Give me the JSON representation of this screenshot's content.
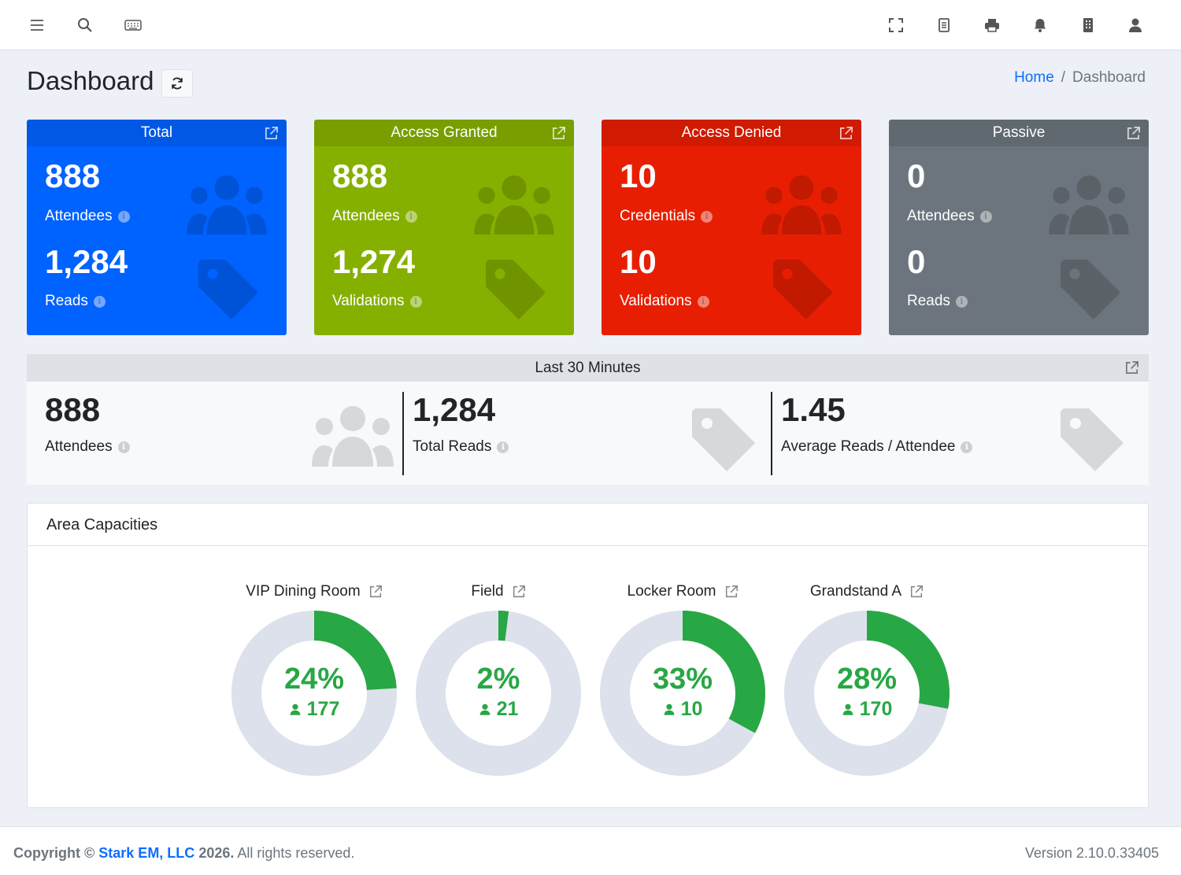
{
  "header": {
    "title": "Dashboard",
    "breadcrumb_home": "Home",
    "breadcrumb_separator": "/",
    "breadcrumb_current": "Dashboard"
  },
  "navbar": {
    "left_icons": [
      "menu-icon",
      "search-icon",
      "keyboard-icon"
    ],
    "right_icons": [
      "fullscreen-icon",
      "document-icon",
      "print-icon",
      "bell-icon",
      "building-icon",
      "user-icon"
    ]
  },
  "cards": [
    {
      "title": "Total",
      "value1": "888",
      "label1": "Attendees",
      "value2": "1,284",
      "label2": "Reads",
      "color": "#0062ff"
    },
    {
      "title": "Access Granted",
      "value1": "888",
      "label1": "Attendees",
      "value2": "1,274",
      "label2": "Validations",
      "color": "#86b000"
    },
    {
      "title": "Access Denied",
      "value1": "10",
      "label1": "Credentials",
      "value2": "10",
      "label2": "Validations",
      "color": "#e81e02"
    },
    {
      "title": "Passive",
      "value1": "0",
      "label1": "Attendees",
      "value2": "0",
      "label2": "Reads",
      "color": "#6c757d"
    }
  ],
  "last30": {
    "title": "Last 30 Minutes",
    "segments": [
      {
        "value": "888",
        "label": "Attendees",
        "icon": "users-icon"
      },
      {
        "value": "1,284",
        "label": "Total Reads",
        "icon": "tag-icon"
      },
      {
        "value": "1.45",
        "label": "Average Reads / Attendee",
        "icon": "tag-icon"
      }
    ]
  },
  "area_capacities": {
    "title": "Area Capacities",
    "areas": [
      {
        "name": "VIP Dining Room",
        "percent_label": "24%",
        "percent": 24,
        "count": "177"
      },
      {
        "name": "Field",
        "percent_label": "2%",
        "percent": 2,
        "count": "21"
      },
      {
        "name": "Locker Room",
        "percent_label": "33%",
        "percent": 33,
        "count": "10"
      },
      {
        "name": "Grandstand A",
        "percent_label": "28%",
        "percent": 28,
        "count": "170"
      }
    ],
    "fill_color": "#28a745",
    "track_color": "#dde1ec"
  },
  "footer": {
    "copyright_prefix": "Copyright ©",
    "company": "Stark EM, LLC",
    "year": "2026.",
    "rights": "All rights reserved.",
    "version": "Version 2.10.0.33405"
  }
}
